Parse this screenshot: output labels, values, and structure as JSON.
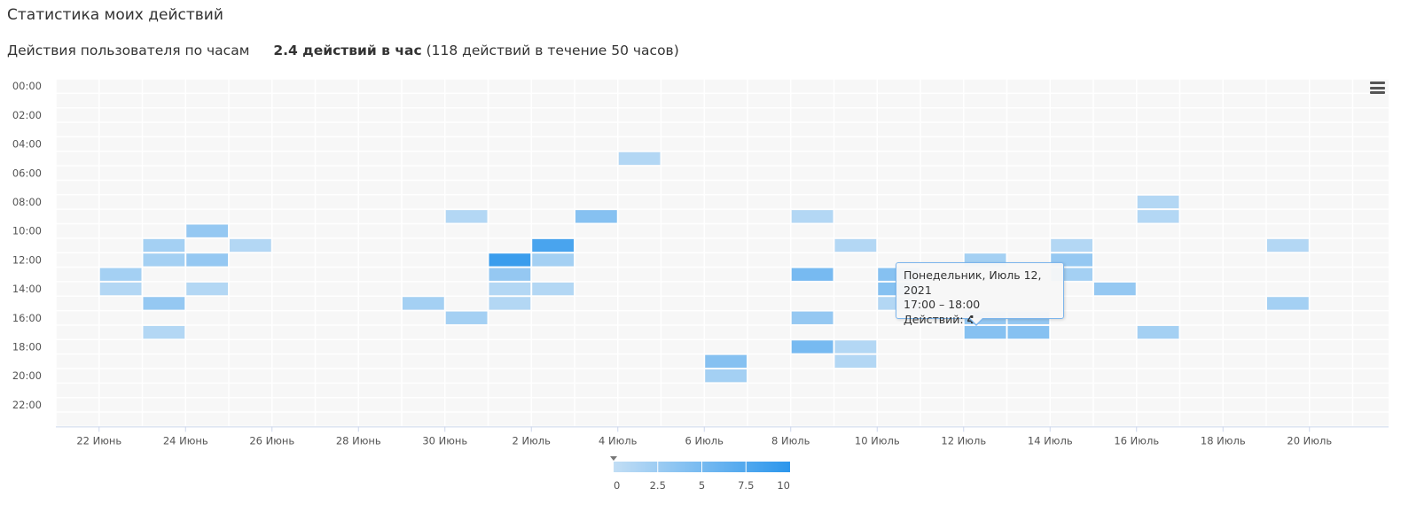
{
  "header": {
    "title": "Статистика моих действий",
    "subtitle_label": "Действия пользователя по часам",
    "rate_text": "2.4 действий в час",
    "rate_detail": "(118 действий в течение 50 часов)"
  },
  "tooltip": {
    "date": "Понедельник, Июль 12, 2021",
    "time_range": "17:00 – 18:00",
    "actions_label": "Действий:",
    "actions_value": "4"
  },
  "icons": {
    "menu": "hamburger-menu-icon"
  },
  "colors": {
    "min": "#c2def5",
    "max": "#2b96ec",
    "empty": "#f7f7f7",
    "grid": "#ffffff"
  },
  "chart_data": {
    "type": "heatmap",
    "x_tick_labels": [
      "22 Июнь",
      "24 Июнь",
      "26 Июнь",
      "28 Июнь",
      "30 Июнь",
      "2 Июль",
      "4 Июль",
      "6 Июль",
      "8 Июль",
      "10 Июль",
      "12 Июль",
      "14 Июль",
      "16 Июль",
      "18 Июль",
      "20 Июль"
    ],
    "y_tick_labels": [
      "00:00",
      "02:00",
      "04:00",
      "06:00",
      "08:00",
      "10:00",
      "12:00",
      "14:00",
      "16:00",
      "18:00",
      "20:00",
      "22:00"
    ],
    "x_range": [
      "2021-06-21",
      "2021-07-21"
    ],
    "y_range": [
      0,
      23
    ],
    "colorAxis": {
      "min": 0,
      "max": 10,
      "tick_labels": [
        "0",
        "2.5",
        "5",
        "7.5",
        "10"
      ]
    },
    "points": [
      {
        "date": "2021-06-22",
        "hour": 13,
        "value": 2
      },
      {
        "date": "2021-06-22",
        "hour": 14,
        "value": 1
      },
      {
        "date": "2021-06-23",
        "hour": 11,
        "value": 2
      },
      {
        "date": "2021-06-23",
        "hour": 12,
        "value": 2
      },
      {
        "date": "2021-06-23",
        "hour": 15,
        "value": 3
      },
      {
        "date": "2021-06-23",
        "hour": 17,
        "value": 1
      },
      {
        "date": "2021-06-24",
        "hour": 10,
        "value": 3
      },
      {
        "date": "2021-06-24",
        "hour": 12,
        "value": 3
      },
      {
        "date": "2021-06-24",
        "hour": 14,
        "value": 1
      },
      {
        "date": "2021-06-25",
        "hour": 11,
        "value": 1
      },
      {
        "date": "2021-06-29",
        "hour": 15,
        "value": 2
      },
      {
        "date": "2021-06-30",
        "hour": 9,
        "value": 1
      },
      {
        "date": "2021-06-30",
        "hour": 16,
        "value": 2
      },
      {
        "date": "2021-07-01",
        "hour": 12,
        "value": 9
      },
      {
        "date": "2021-07-01",
        "hour": 13,
        "value": 3
      },
      {
        "date": "2021-07-01",
        "hour": 14,
        "value": 1
      },
      {
        "date": "2021-07-01",
        "hour": 15,
        "value": 1
      },
      {
        "date": "2021-07-02",
        "hour": 11,
        "value": 8
      },
      {
        "date": "2021-07-02",
        "hour": 12,
        "value": 2
      },
      {
        "date": "2021-07-02",
        "hour": 14,
        "value": 1
      },
      {
        "date": "2021-07-03",
        "hour": 9,
        "value": 4
      },
      {
        "date": "2021-07-04",
        "hour": 5,
        "value": 1
      },
      {
        "date": "2021-07-06",
        "hour": 19,
        "value": 4
      },
      {
        "date": "2021-07-06",
        "hour": 20,
        "value": 2
      },
      {
        "date": "2021-07-08",
        "hour": 9,
        "value": 1
      },
      {
        "date": "2021-07-08",
        "hour": 13,
        "value": 5
      },
      {
        "date": "2021-07-08",
        "hour": 16,
        "value": 3
      },
      {
        "date": "2021-07-08",
        "hour": 18,
        "value": 5
      },
      {
        "date": "2021-07-09",
        "hour": 11,
        "value": 1
      },
      {
        "date": "2021-07-09",
        "hour": 18,
        "value": 1
      },
      {
        "date": "2021-07-09",
        "hour": 19,
        "value": 1
      },
      {
        "date": "2021-07-10",
        "hour": 13,
        "value": 4
      },
      {
        "date": "2021-07-10",
        "hour": 14,
        "value": 4
      },
      {
        "date": "2021-07-10",
        "hour": 15,
        "value": 1
      },
      {
        "date": "2021-07-12",
        "hour": 12,
        "value": 2
      },
      {
        "date": "2021-07-12",
        "hour": 16,
        "value": 3
      },
      {
        "date": "2021-07-12",
        "hour": 17,
        "value": 4
      },
      {
        "date": "2021-07-13",
        "hour": 16,
        "value": 3
      },
      {
        "date": "2021-07-13",
        "hour": 17,
        "value": 4
      },
      {
        "date": "2021-07-14",
        "hour": 11,
        "value": 1
      },
      {
        "date": "2021-07-14",
        "hour": 12,
        "value": 3
      },
      {
        "date": "2021-07-14",
        "hour": 13,
        "value": 2
      },
      {
        "date": "2021-07-15",
        "hour": 14,
        "value": 3
      },
      {
        "date": "2021-07-16",
        "hour": 8,
        "value": 1
      },
      {
        "date": "2021-07-16",
        "hour": 9,
        "value": 1
      },
      {
        "date": "2021-07-16",
        "hour": 17,
        "value": 2
      },
      {
        "date": "2021-07-19",
        "hour": 11,
        "value": 1
      },
      {
        "date": "2021-07-19",
        "hour": 15,
        "value": 2
      }
    ]
  }
}
